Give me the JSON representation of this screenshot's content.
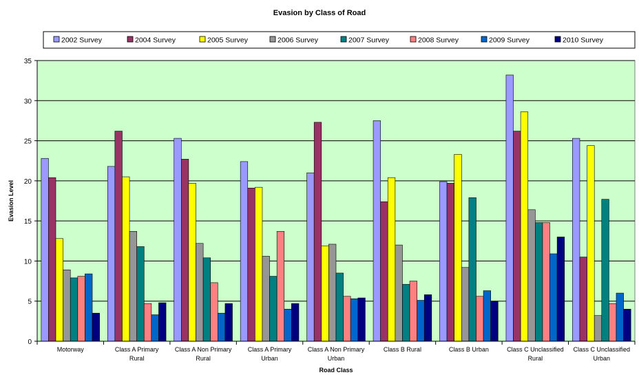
{
  "chart_data": {
    "type": "bar",
    "title": "Evasion by Class of Road",
    "xlabel": "Road Class",
    "ylabel": "Evasion Level",
    "ylim": [
      0,
      35
    ],
    "yticks": [
      0,
      5,
      10,
      15,
      20,
      25,
      30,
      35
    ],
    "grid": true,
    "legend_position": "top",
    "plot_background": "#ccffcc",
    "categories": [
      [
        "Motorway"
      ],
      [
        "Class A Primary",
        "Rural"
      ],
      [
        "Class A Non Primary",
        "Rural"
      ],
      [
        "Class A Primary",
        "Urban"
      ],
      [
        "Class A Non Primary",
        "Urban"
      ],
      [
        "Class B Rural"
      ],
      [
        "Class B Urban"
      ],
      [
        "Class C Unclassified",
        "Rural"
      ],
      [
        "Class C Unclassified",
        "Urban"
      ]
    ],
    "series": [
      {
        "name": "2002 Survey",
        "color": "#9999ff",
        "values": [
          22.8,
          21.8,
          25.3,
          22.4,
          21.0,
          27.5,
          19.9,
          33.2,
          25.3
        ]
      },
      {
        "name": "2004 Survey",
        "color": "#993366",
        "values": [
          20.4,
          26.2,
          22.7,
          19.1,
          27.3,
          17.4,
          19.7,
          26.2,
          10.5
        ]
      },
      {
        "name": "2005 Survey",
        "color": "#ffff00",
        "values": [
          12.8,
          20.5,
          19.7,
          19.2,
          11.9,
          20.4,
          23.3,
          28.6,
          24.4
        ]
      },
      {
        "name": "2006 Survey",
        "color": "#969696",
        "values": [
          8.9,
          13.7,
          12.2,
          10.6,
          12.1,
          12.0,
          9.2,
          16.4,
          3.2
        ]
      },
      {
        "name": "2007 Survey",
        "color": "#008080",
        "values": [
          7.9,
          11.8,
          10.4,
          8.1,
          8.5,
          7.1,
          17.9,
          14.8,
          17.7
        ]
      },
      {
        "name": "2008 Survey",
        "color": "#ff8080",
        "values": [
          8.1,
          4.7,
          7.3,
          13.7,
          5.6,
          7.5,
          5.6,
          14.8,
          4.7
        ]
      },
      {
        "name": "2009 Survey",
        "color": "#0066cc",
        "values": [
          8.4,
          3.3,
          3.5,
          4.0,
          5.3,
          5.1,
          6.3,
          10.9,
          6.0
        ]
      },
      {
        "name": "2010 Survey",
        "color": "#000080",
        "values": [
          3.5,
          4.8,
          4.7,
          4.7,
          5.4,
          5.8,
          5.0,
          13.0,
          4.0
        ]
      }
    ]
  }
}
